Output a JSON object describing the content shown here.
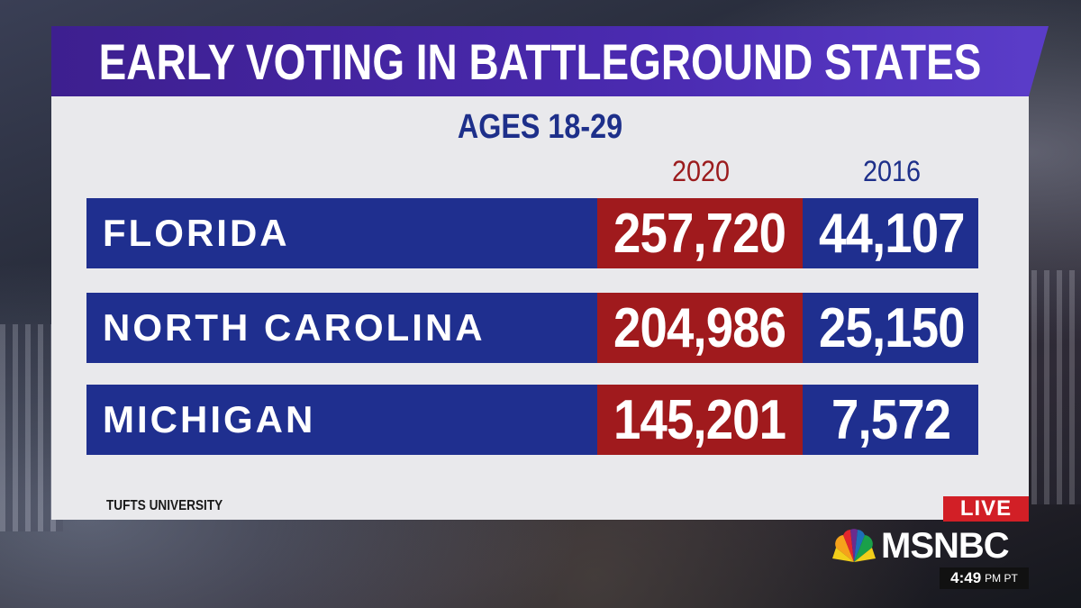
{
  "graphic": {
    "title": "EARLY VOTING IN BATTLEGROUND STATES",
    "subtitle": "AGES 18-29",
    "columns": [
      "2020",
      "2016"
    ],
    "rows": [
      {
        "state": "FLORIDA",
        "v2020": "257,720",
        "v2016": "44,107"
      },
      {
        "state": "NORTH CAROLINA",
        "v2020": "204,986",
        "v2016": "25,150"
      },
      {
        "state": "MICHIGAN",
        "v2020": "145,201",
        "v2016": "7,572"
      }
    ],
    "source": "TUFTS UNIVERSITY"
  },
  "broadcast": {
    "live_label": "LIVE",
    "network": "MSNBC",
    "time": "4:49",
    "timezone": "PM PT"
  },
  "colors": {
    "title_bg": "#4a2ab0",
    "row_bg": "#1f2f8f",
    "highlight_2020": "#a01a1d",
    "live_red": "#d21f26"
  }
}
